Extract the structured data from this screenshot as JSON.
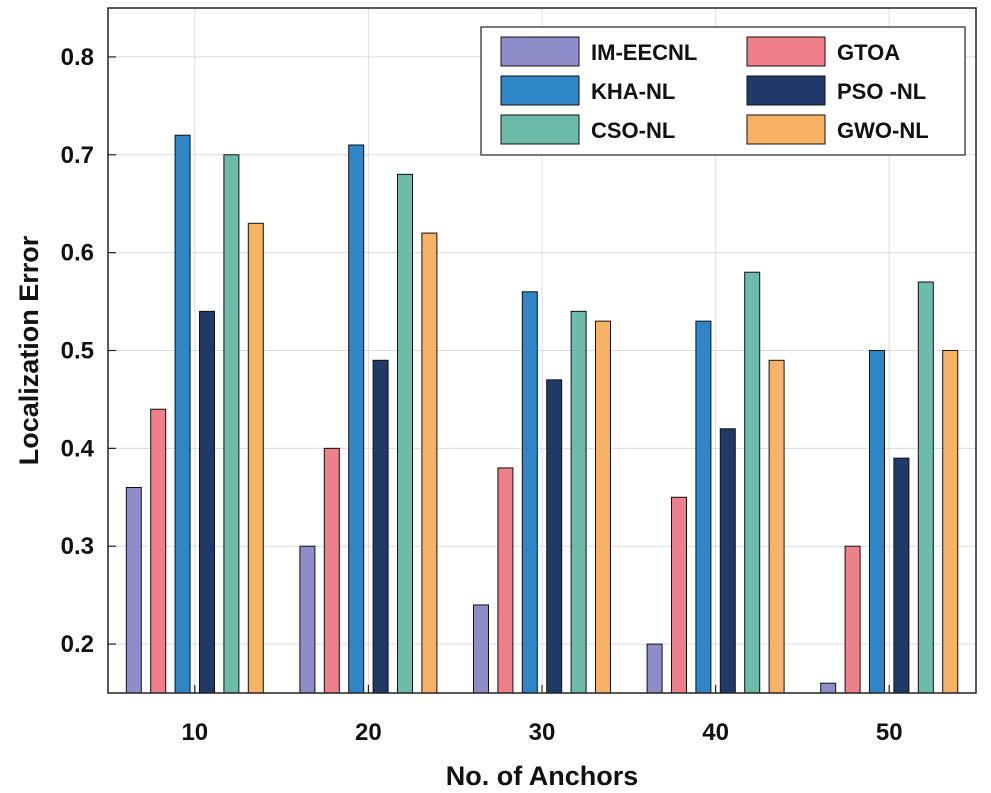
{
  "chart_data": {
    "type": "bar",
    "title": "",
    "xlabel": "No. of Anchors",
    "ylabel": "Localization Error",
    "categories": [
      "10",
      "20",
      "30",
      "40",
      "50"
    ],
    "ylim": [
      0.15,
      0.85
    ],
    "yticks": [
      0.2,
      0.3,
      0.4,
      0.5,
      0.6,
      0.7,
      0.8
    ],
    "ytick_labels": [
      "0.2",
      "0.3",
      "0.4",
      "0.5",
      "0.6",
      "0.7",
      "0.8"
    ],
    "grid": true,
    "legend_position": "top-right",
    "series": [
      {
        "name": "IM-EECNL",
        "color": "#8f8dc9",
        "values": [
          0.36,
          0.3,
          0.24,
          0.2,
          0.16
        ]
      },
      {
        "name": "GTOA",
        "color": "#ef7f8a",
        "values": [
          0.44,
          0.4,
          0.38,
          0.35,
          0.3
        ]
      },
      {
        "name": "KHA-NL",
        "color": "#2f86c6",
        "values": [
          0.72,
          0.71,
          0.56,
          0.53,
          0.5
        ]
      },
      {
        "name": "PSO -NL",
        "color": "#1f3a68",
        "values": [
          0.54,
          0.49,
          0.47,
          0.42,
          0.39
        ]
      },
      {
        "name": "CSO-NL",
        "color": "#6dbcaa",
        "values": [
          0.7,
          0.68,
          0.54,
          0.58,
          0.57
        ]
      },
      {
        "name": "GWO-NL",
        "color": "#f7b265",
        "values": [
          0.63,
          0.62,
          0.53,
          0.49,
          0.5
        ]
      }
    ]
  }
}
